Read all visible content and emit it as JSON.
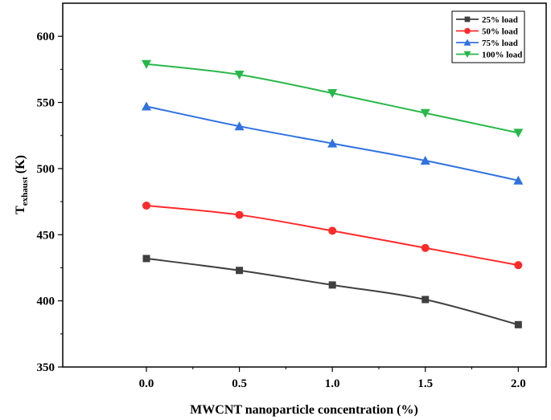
{
  "chart_data": {
    "type": "line",
    "title": "",
    "xlabel": "MWCNT nanoparticle concentration (%)",
    "ylabel": {
      "main": "T",
      "subscript": "exhaust",
      "suffix": " (K)"
    },
    "x": [
      0.0,
      0.5,
      1.0,
      1.5,
      2.0
    ],
    "x_tick_labels": [
      "0.0",
      "0.5",
      "1.0",
      "1.5",
      "2.0"
    ],
    "y_ticks": [
      350,
      400,
      450,
      500,
      550,
      600
    ],
    "y_tick_labels": [
      "350",
      "400",
      "450",
      "500",
      "550",
      "600"
    ],
    "xlim": [
      -0.45,
      2.15
    ],
    "ylim": [
      350,
      625
    ],
    "grid": false,
    "legend_position": "top-right",
    "series": [
      {
        "name": "25% load",
        "color": "#3f3f3f",
        "marker": "square",
        "values": [
          432,
          423,
          412,
          401,
          382
        ]
      },
      {
        "name": "50%  load",
        "color": "#ff2a2a",
        "marker": "circle",
        "values": [
          472,
          465,
          453,
          440,
          427
        ]
      },
      {
        "name": "75% load",
        "color": "#2f72e0",
        "marker": "triangle-up",
        "values": [
          547,
          532,
          519,
          506,
          491
        ]
      },
      {
        "name": "100% load",
        "color": "#27b84a",
        "marker": "triangle-down",
        "values": [
          579,
          571,
          557,
          542,
          527
        ]
      }
    ]
  }
}
